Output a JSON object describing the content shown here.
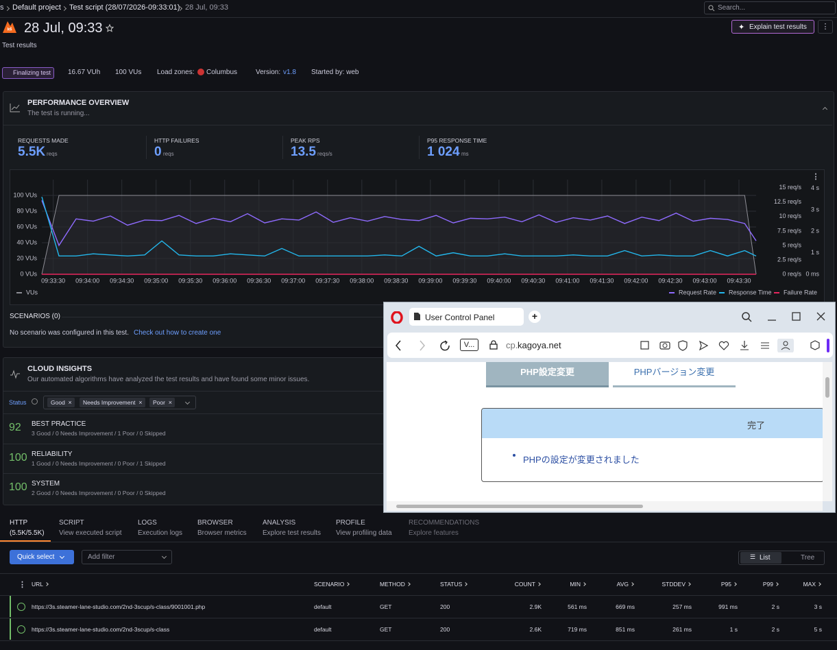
{
  "breadcrumbs": [
    "s",
    "Default project",
    "Test script (28/07/2026-09:33:01)",
    "28 Jul, 09:33"
  ],
  "search_placeholder": "Search...",
  "title": "28 Jul, 09:33",
  "subtitle": "Test results",
  "explain_button": "Explain test results",
  "meta": {
    "status": "Finalizing test",
    "vuh": "16.67 VUh",
    "vus": "100 VUs",
    "load_zones": "Load zones:",
    "zone": "Columbus",
    "version_label": "Version:",
    "version": "v1.8",
    "started_by": "Started by: web"
  },
  "overview": {
    "title": "PERFORMANCE OVERVIEW",
    "subtitle": "The test is running...",
    "metrics": [
      {
        "label": "REQUESTS MADE",
        "value": "5.5K",
        "unit": "reqs"
      },
      {
        "label": "HTTP FAILURES",
        "value": "0",
        "unit": "reqs"
      },
      {
        "label": "PEAK RPS",
        "value": "13.5",
        "unit": "reqs/s"
      },
      {
        "label": "P95 RESPONSE TIME",
        "value": "1 024",
        "unit": "ms"
      }
    ]
  },
  "chart_data": {
    "type": "line",
    "x": [
      "09:33:20",
      "09:33:35",
      "09:33:50",
      "09:34:05",
      "09:34:20",
      "09:34:35",
      "09:34:50",
      "09:35:05",
      "09:35:20",
      "09:35:35",
      "09:35:50",
      "09:36:05",
      "09:36:20",
      "09:36:35",
      "09:36:50",
      "09:37:05",
      "09:37:20",
      "09:37:35",
      "09:37:50",
      "09:38:05",
      "09:38:20",
      "09:38:35",
      "09:38:50",
      "09:39:05",
      "09:39:20",
      "09:39:35",
      "09:39:50",
      "09:40:05",
      "09:40:20",
      "09:40:35",
      "09:40:50",
      "09:41:05",
      "09:41:20",
      "09:41:35",
      "09:41:50",
      "09:42:05",
      "09:42:20",
      "09:42:35",
      "09:42:50",
      "09:43:05",
      "09:43:20",
      "09:43:35",
      "09:43:45"
    ],
    "xlim": [
      "09:33:20",
      "09:43:45"
    ],
    "xticks": [
      "09:33:30",
      "09:34:00",
      "09:34:30",
      "09:35:00",
      "09:35:30",
      "09:36:00",
      "09:36:30",
      "09:37:00",
      "09:37:30",
      "09:38:00",
      "09:38:30",
      "09:39:00",
      "09:39:30",
      "09:40:00",
      "09:40:30",
      "09:41:00",
      "09:41:30",
      "09:42:00",
      "09:42:30",
      "09:43:00",
      "09:43:30"
    ],
    "ylim": [
      0,
      120
    ],
    "yticks": [
      {
        "value": 0,
        "label": "0 VUs"
      },
      {
        "value": 20,
        "label": "20 VUs"
      },
      {
        "value": 40,
        "label": "40 VUs"
      },
      {
        "value": 60,
        "label": "60 VUs"
      },
      {
        "value": 80,
        "label": "80 VUs"
      },
      {
        "value": 100,
        "label": "100 VUs"
      }
    ],
    "y2lim": [
      0,
      16.4
    ],
    "y2ticks": [
      {
        "value": 0,
        "label": "0 req/s"
      },
      {
        "value": 2.5,
        "label": "2.5 req/s"
      },
      {
        "value": 5,
        "label": "5 req/s"
      },
      {
        "value": 7.5,
        "label": "7.5 req/s"
      },
      {
        "value": 10,
        "label": "10 req/s"
      },
      {
        "value": 12.5,
        "label": "12.5 req/s"
      },
      {
        "value": 15,
        "label": "15 req/s"
      }
    ],
    "y3lim": [
      0,
      4.4
    ],
    "y3ticks": [
      {
        "value": 0,
        "label": "0 ms"
      },
      {
        "value": 1,
        "label": "1 s"
      },
      {
        "value": 2,
        "label": "2 s"
      },
      {
        "value": 3,
        "label": "3 s"
      },
      {
        "value": 4,
        "label": "4 s"
      }
    ],
    "grid": true,
    "series": [
      {
        "name": "VUs",
        "color": "#8e8e96",
        "axis": "y",
        "area": true,
        "values": [
          0,
          100,
          100,
          100,
          100,
          100,
          100,
          100,
          100,
          100,
          100,
          100,
          100,
          100,
          100,
          100,
          100,
          100,
          100,
          100,
          100,
          100,
          100,
          100,
          100,
          100,
          100,
          100,
          100,
          100,
          100,
          100,
          100,
          100,
          100,
          100,
          100,
          100,
          100,
          100,
          100,
          100,
          0
        ]
      },
      {
        "name": "Request Rate",
        "color": "#8f6bff",
        "axis": "y2",
        "values": [
          12.8,
          5.0,
          9.6,
          9.2,
          10.1,
          8.5,
          9.4,
          9.3,
          10.2,
          8.8,
          9.7,
          9.1,
          10.5,
          8.9,
          9.6,
          9.4,
          10.8,
          9.0,
          9.8,
          9.2,
          10.0,
          9.5,
          9.3,
          10.2,
          8.9,
          9.7,
          9.6,
          9.9,
          9.1,
          10.3,
          9.0,
          9.8,
          9.4,
          10.1,
          8.8,
          9.9,
          9.3,
          10.6,
          9.2,
          9.7,
          9.5,
          8.8,
          5.8
        ]
      },
      {
        "name": "Response Time",
        "color": "#23b7ec",
        "axis": "y3",
        "values": [
          3.6,
          0.85,
          0.85,
          0.95,
          0.9,
          0.85,
          0.9,
          1.55,
          0.9,
          0.85,
          0.85,
          0.95,
          0.9,
          0.85,
          1.2,
          0.85,
          0.85,
          0.85,
          0.85,
          0.85,
          0.9,
          0.85,
          1.3,
          0.85,
          1.0,
          0.85,
          0.85,
          0.95,
          0.85,
          0.85,
          0.85,
          0.9,
          0.85,
          0.85,
          1.1,
          0.85,
          0.9,
          0.85,
          0.85,
          1.1,
          0.85,
          1.1,
          0.85
        ]
      },
      {
        "name": "Failure Rate",
        "color": "#e8265e",
        "axis": "y2",
        "values": [
          0,
          0,
          0,
          0,
          0,
          0,
          0,
          0,
          0,
          0,
          0,
          0,
          0,
          0,
          0,
          0,
          0,
          0,
          0,
          0,
          0,
          0,
          0,
          0,
          0,
          0,
          0,
          0,
          0,
          0,
          0,
          0,
          0,
          0,
          0,
          0,
          0,
          0,
          0,
          0,
          0,
          0,
          0
        ]
      }
    ]
  },
  "scenarios": {
    "title": "SCENARIOS (0)",
    "text": "No scenario was configured in this test.",
    "link": "Check out how to create one"
  },
  "insights": {
    "title": "CLOUD INSIGHTS",
    "subtitle": "Our automated algorithms have analyzed the test results and have found some minor issues.",
    "status_label": "Status",
    "filters": [
      "Good",
      "Needs Improvement",
      "Poor"
    ],
    "items": [
      {
        "score": 92,
        "name": "BEST PRACTICE",
        "detail": "3 Good / 0 Needs Improvement / 1 Poor / 0 Skipped"
      },
      {
        "score": 100,
        "name": "RELIABILITY",
        "detail": "1 Good / 0 Needs Improvement / 0 Poor / 1 Skipped"
      },
      {
        "score": 100,
        "name": "SYSTEM",
        "detail": "2 Good / 0 Needs Improvement / 0 Poor / 0 Skipped"
      }
    ]
  },
  "tabs": [
    {
      "label": "HTTP",
      "sub": "(5.5K/5.5K)"
    },
    {
      "label": "SCRIPT",
      "sub": "View executed script"
    },
    {
      "label": "LOGS",
      "sub": "Execution logs"
    },
    {
      "label": "BROWSER",
      "sub": "Browser metrics"
    },
    {
      "label": "ANALYSIS",
      "sub": "Explore test results"
    },
    {
      "label": "PROFILE",
      "sub": "View profiling data"
    },
    {
      "label": "RECOMMENDATIONS",
      "sub": "Explore features"
    }
  ],
  "toolbar": {
    "quick_select": "Quick select",
    "add_filter": "Add filter",
    "list": "List",
    "tree": "Tree"
  },
  "table": {
    "columns": [
      "URL",
      "SCENARIO",
      "METHOD",
      "STATUS",
      "COUNT",
      "MIN",
      "AVG",
      "STDDEV",
      "P95",
      "P99",
      "MAX"
    ],
    "rows": [
      [
        "https://3s.steamer-lane-studio.com/2nd-3scup/s-class/9001001.php",
        "default",
        "GET",
        "200",
        "2.9K",
        "561 ms",
        "669 ms",
        "257 ms",
        "991 ms",
        "2 s",
        "3 s"
      ],
      [
        "https://3s.steamer-lane-studio.com/2nd-3scup/s-class",
        "default",
        "GET",
        "200",
        "2.6K",
        "719 ms",
        "851 ms",
        "261 ms",
        "1 s",
        "2 s",
        "5 s"
      ]
    ]
  },
  "browser": {
    "tab_title": "User Control Panel",
    "site_badge": "V...",
    "url_prefix": "cp.",
    "url_domain": "kagoya.net",
    "page_tabs": [
      "PHP設定変更",
      "PHPバージョン変更"
    ],
    "box_title": "完了",
    "message": "PHPの設定が変更されました"
  }
}
